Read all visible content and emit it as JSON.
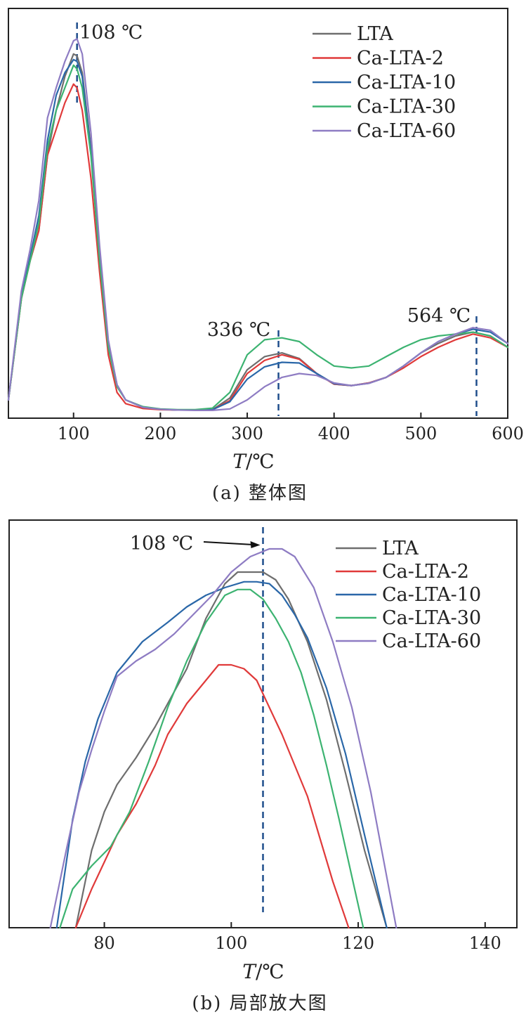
{
  "colors": {
    "LTA": "#6e6e6e",
    "Ca-LTA-2": "#e03a3a",
    "Ca-LTA-10": "#2a67a8",
    "Ca-LTA-30": "#3cb371",
    "Ca-LTA-60": "#8e7cc3",
    "marker_line": "#1f4e8c"
  },
  "chart_data": [
    {
      "type": "line",
      "caption": "(a) 整体图",
      "xlabel_italic": "T",
      "xlabel_unit": "/℃",
      "xlim": [
        25,
        600
      ],
      "ylim": [
        0,
        1
      ],
      "xticks": [
        100,
        200,
        300,
        400,
        500,
        600
      ],
      "annotations": [
        {
          "text": "108 ℃",
          "x": 104
        },
        {
          "text": "336 ℃",
          "x": 336
        },
        {
          "text": "564 ℃",
          "x": 564
        }
      ],
      "legend": [
        "LTA",
        "Ca-LTA-2",
        "Ca-LTA-10",
        "Ca-LTA-30",
        "Ca-LTA-60"
      ],
      "series": [
        {
          "name": "LTA",
          "x": [
            25,
            40,
            50,
            60,
            70,
            80,
            90,
            100,
            104,
            110,
            120,
            130,
            140,
            150,
            160,
            180,
            200,
            220,
            240,
            260,
            280,
            300,
            320,
            340,
            360,
            380,
            400,
            420,
            440,
            460,
            480,
            500,
            520,
            540,
            560,
            580,
            600
          ],
          "y": [
            0.03,
            0.3,
            0.4,
            0.48,
            0.68,
            0.8,
            0.89,
            0.95,
            0.945,
            0.9,
            0.7,
            0.42,
            0.18,
            0.07,
            0.03,
            0.01,
            0.005,
            0.003,
            0.003,
            0.004,
            0.035,
            0.11,
            0.145,
            0.155,
            0.14,
            0.1,
            0.072,
            0.068,
            0.075,
            0.09,
            0.12,
            0.155,
            0.18,
            0.2,
            0.21,
            0.2,
            0.17
          ]
        },
        {
          "name": "Ca-LTA-2",
          "x": [
            25,
            40,
            50,
            60,
            70,
            80,
            90,
            100,
            104,
            110,
            120,
            130,
            140,
            150,
            160,
            180,
            200,
            220,
            240,
            260,
            280,
            300,
            320,
            340,
            360,
            380,
            400,
            420,
            440,
            460,
            480,
            500,
            520,
            540,
            560,
            580,
            600
          ],
          "y": [
            0.03,
            0.3,
            0.4,
            0.48,
            0.68,
            0.75,
            0.82,
            0.87,
            0.86,
            0.8,
            0.62,
            0.37,
            0.15,
            0.05,
            0.02,
            0.007,
            0.004,
            0.003,
            0.003,
            0.004,
            0.028,
            0.1,
            0.135,
            0.15,
            0.138,
            0.1,
            0.072,
            0.068,
            0.075,
            0.09,
            0.115,
            0.145,
            0.17,
            0.19,
            0.205,
            0.195,
            0.17
          ]
        },
        {
          "name": "Ca-LTA-10",
          "x": [
            25,
            40,
            50,
            60,
            70,
            80,
            90,
            100,
            104,
            110,
            120,
            130,
            140,
            150,
            160,
            180,
            200,
            220,
            240,
            260,
            280,
            300,
            320,
            340,
            360,
            380,
            400,
            420,
            440,
            460,
            480,
            500,
            520,
            540,
            560,
            580,
            600
          ],
          "y": [
            0.03,
            0.31,
            0.41,
            0.52,
            0.72,
            0.84,
            0.9,
            0.935,
            0.93,
            0.89,
            0.69,
            0.42,
            0.18,
            0.07,
            0.03,
            0.01,
            0.005,
            0.003,
            0.003,
            0.004,
            0.025,
            0.085,
            0.118,
            0.13,
            0.128,
            0.1,
            0.073,
            0.068,
            0.074,
            0.09,
            0.12,
            0.155,
            0.185,
            0.205,
            0.218,
            0.21,
            0.18
          ]
        },
        {
          "name": "Ca-LTA-30",
          "x": [
            25,
            40,
            50,
            60,
            70,
            80,
            90,
            100,
            104,
            110,
            120,
            130,
            140,
            150,
            160,
            180,
            200,
            220,
            240,
            260,
            280,
            300,
            320,
            340,
            360,
            380,
            400,
            420,
            440,
            460,
            480,
            500,
            520,
            540,
            560,
            580,
            600
          ],
          "y": [
            0.03,
            0.3,
            0.4,
            0.5,
            0.7,
            0.8,
            0.86,
            0.92,
            0.91,
            0.86,
            0.68,
            0.4,
            0.17,
            0.065,
            0.03,
            0.012,
            0.006,
            0.004,
            0.004,
            0.008,
            0.05,
            0.15,
            0.19,
            0.195,
            0.185,
            0.15,
            0.12,
            0.115,
            0.12,
            0.145,
            0.17,
            0.19,
            0.2,
            0.205,
            0.21,
            0.2,
            0.17
          ]
        },
        {
          "name": "Ca-LTA-60",
          "x": [
            25,
            40,
            50,
            60,
            70,
            80,
            90,
            100,
            104,
            110,
            120,
            130,
            140,
            150,
            160,
            180,
            200,
            220,
            240,
            260,
            280,
            300,
            320,
            340,
            360,
            380,
            400,
            420,
            440,
            460,
            480,
            500,
            520,
            540,
            560,
            580,
            600
          ],
          "y": [
            0.03,
            0.32,
            0.43,
            0.56,
            0.78,
            0.86,
            0.93,
            0.985,
            0.99,
            0.95,
            0.74,
            0.44,
            0.19,
            0.07,
            0.03,
            0.01,
            0.005,
            0.003,
            0.002,
            0.002,
            0.006,
            0.03,
            0.065,
            0.09,
            0.1,
            0.095,
            0.075,
            0.068,
            0.074,
            0.09,
            0.12,
            0.155,
            0.185,
            0.205,
            0.222,
            0.215,
            0.18
          ]
        }
      ]
    },
    {
      "type": "line",
      "caption": "(b) 局部放大图",
      "xlabel_italic": "T",
      "xlabel_unit": "/℃",
      "xlim": [
        65,
        145
      ],
      "ylim": [
        0,
        1
      ],
      "xticks": [
        80,
        100,
        120,
        140
      ],
      "annotations": [
        {
          "text": "108 ℃",
          "x": 105
        }
      ],
      "legend": [
        "LTA",
        "Ca-LTA-2",
        "Ca-LTA-10",
        "Ca-LTA-30",
        "Ca-LTA-60"
      ],
      "series": [
        {
          "name": "LTA",
          "x": [
            75.5,
            78,
            80,
            82,
            85,
            88,
            90,
            93,
            96,
            99,
            101,
            103,
            105,
            107,
            109,
            112,
            115,
            118,
            121,
            124.5
          ],
          "y": [
            0,
            0.2,
            0.3,
            0.37,
            0.44,
            0.52,
            0.58,
            0.67,
            0.8,
            0.89,
            0.92,
            0.92,
            0.92,
            0.9,
            0.85,
            0.74,
            0.59,
            0.4,
            0.2,
            0
          ]
        },
        {
          "name": "Ca-LTA-2",
          "x": [
            75.5,
            78,
            80,
            82,
            85,
            88,
            90,
            93,
            96,
            98,
            100,
            102,
            104,
            106,
            108,
            110,
            112,
            114,
            116,
            118.5
          ],
          "y": [
            0,
            0.1,
            0.17,
            0.24,
            0.32,
            0.42,
            0.5,
            0.58,
            0.64,
            0.68,
            0.68,
            0.67,
            0.64,
            0.57,
            0.5,
            0.42,
            0.34,
            0.23,
            0.12,
            0
          ]
        },
        {
          "name": "Ca-LTA-10",
          "x": [
            72.5,
            75,
            77,
            79,
            82,
            86,
            90,
            93,
            96,
            99,
            102,
            104,
            106,
            108,
            110,
            112,
            115,
            118,
            121,
            124.5
          ],
          "y": [
            0,
            0.28,
            0.43,
            0.54,
            0.66,
            0.74,
            0.79,
            0.83,
            0.86,
            0.88,
            0.895,
            0.895,
            0.89,
            0.86,
            0.81,
            0.75,
            0.62,
            0.45,
            0.24,
            0
          ]
        },
        {
          "name": "Ca-LTA-30",
          "x": [
            73,
            75,
            78,
            81,
            84,
            87,
            90,
            93,
            96,
            99,
            101,
            103,
            105,
            107,
            109,
            111,
            113,
            115,
            117,
            120.8
          ],
          "y": [
            0,
            0.1,
            0.16,
            0.21,
            0.3,
            0.43,
            0.57,
            0.69,
            0.79,
            0.86,
            0.875,
            0.875,
            0.85,
            0.8,
            0.74,
            0.66,
            0.55,
            0.42,
            0.28,
            0
          ]
        },
        {
          "name": "Ca-LTA-60",
          "x": [
            71.5,
            74,
            76,
            78,
            80,
            82,
            85,
            88,
            91,
            94,
            97,
            100,
            103,
            106,
            108,
            110,
            113,
            116,
            119,
            122,
            126
          ],
          "y": [
            0,
            0.2,
            0.35,
            0.46,
            0.56,
            0.65,
            0.69,
            0.72,
            0.76,
            0.81,
            0.86,
            0.92,
            0.96,
            0.98,
            0.98,
            0.96,
            0.88,
            0.74,
            0.57,
            0.35,
            0
          ]
        }
      ]
    }
  ]
}
